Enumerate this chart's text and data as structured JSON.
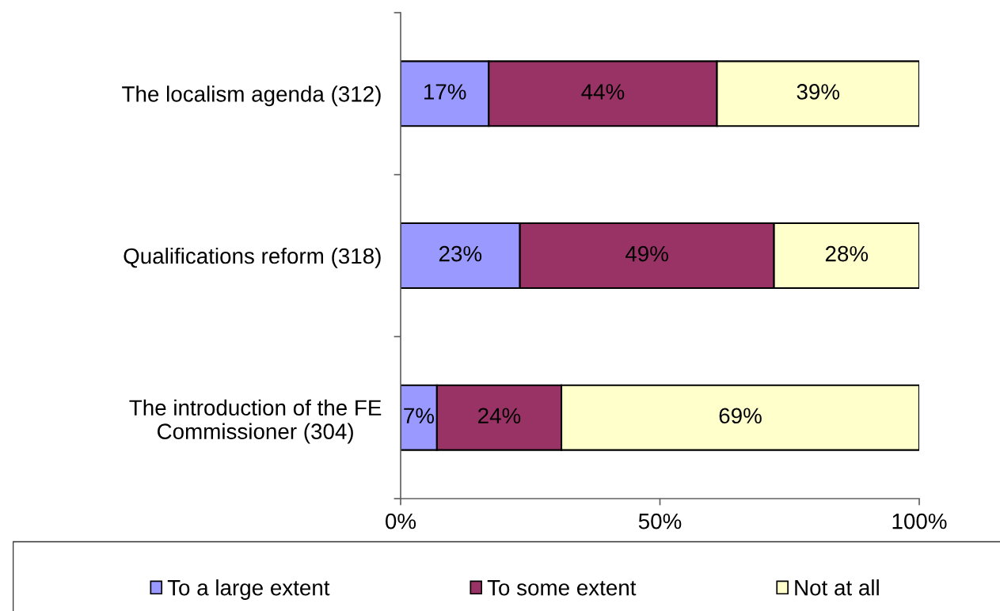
{
  "chart_data": {
    "type": "bar",
    "orientation": "horizontal",
    "stacked": true,
    "categories": [
      "The localism agenda (312)",
      "Qualifications reform (318)",
      "The introduction of the FE\nCommissioner (304)"
    ],
    "series": [
      {
        "name": "To a large extent",
        "color": "#9999ff",
        "values": [
          17,
          23,
          7
        ],
        "value_labels": [
          "17%",
          "23%",
          "7%"
        ]
      },
      {
        "name": "To some extent",
        "color": "#993366",
        "values": [
          44,
          49,
          24
        ],
        "value_labels": [
          "44%",
          "49%",
          "24%"
        ]
      },
      {
        "name": "Not at all",
        "color": "#ffffcc",
        "values": [
          39,
          28,
          69
        ],
        "value_labels": [
          "39%",
          "28%",
          "69%"
        ]
      }
    ],
    "xlim": [
      0,
      100
    ],
    "xticks": [
      {
        "value": 0,
        "label": "0%"
      },
      {
        "value": 50,
        "label": "50%"
      },
      {
        "value": 100,
        "label": "100%"
      }
    ],
    "grid": false,
    "legend": "bottom"
  }
}
